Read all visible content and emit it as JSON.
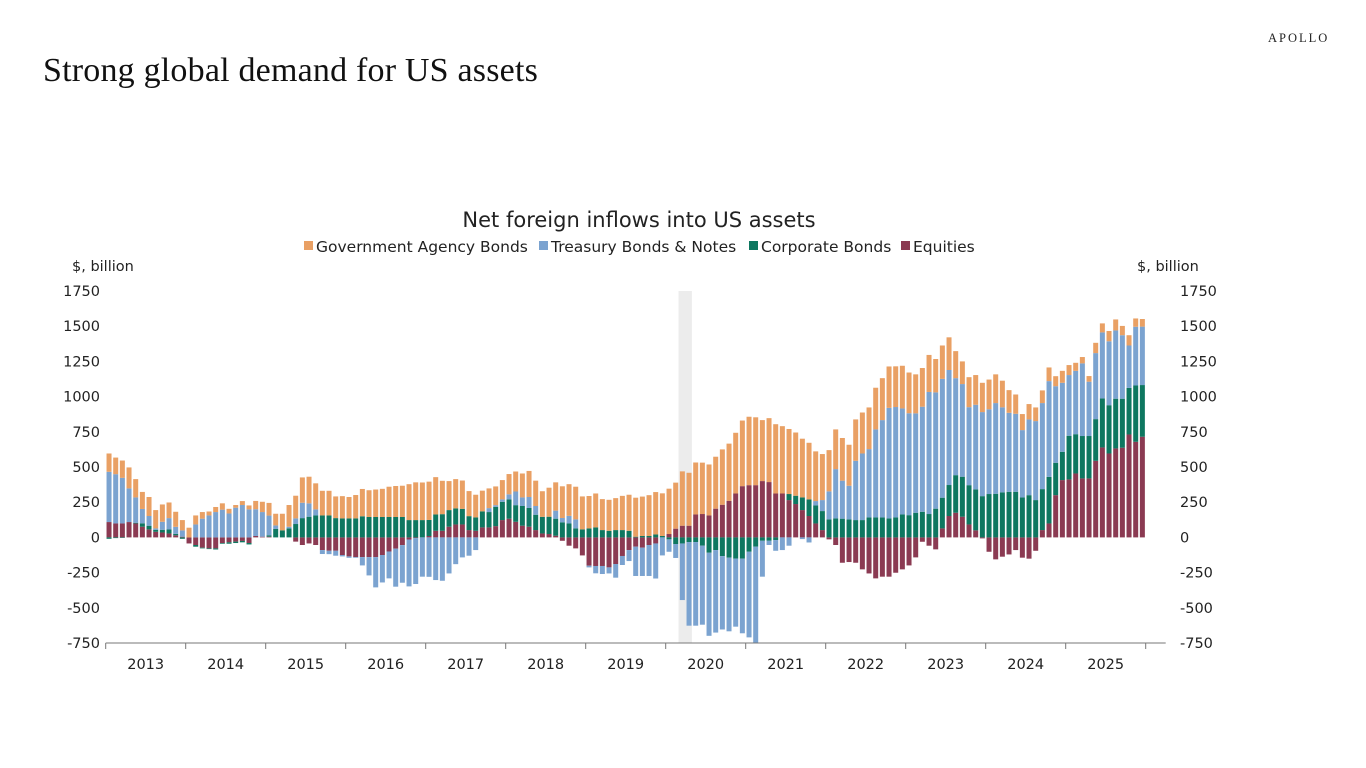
{
  "page": {
    "title": "Strong global demand for US assets",
    "brand": "APOLLO"
  },
  "chart_data": {
    "type": "bar",
    "stacked": true,
    "title": "Net foreign inflows into US assets",
    "ylabel_left": "$, billion",
    "ylabel_right": "$, billion",
    "ylim": [
      -750,
      1750
    ],
    "yticks": [
      1750,
      1500,
      1250,
      1000,
      750,
      500,
      250,
      0,
      -250,
      -500,
      -750
    ],
    "x_tick_labels": [
      "2013",
      "2014",
      "2015",
      "2016",
      "2017",
      "2018",
      "2019",
      "2020",
      "2021",
      "2022",
      "2023",
      "2024",
      "2025"
    ],
    "frequency": "monthly",
    "shaded_region": [
      "2020-03",
      "2020-04"
    ],
    "legend_position": "top",
    "grid": false,
    "series": [
      {
        "name": "Equities",
        "color": "#8B3A52",
        "values": [
          109,
          99,
          99,
          109,
          99,
          76,
          57,
          40,
          35,
          28,
          15,
          5,
          -43,
          -54,
          -73,
          -78,
          -78,
          -40,
          -35,
          -30,
          -25,
          -40,
          10,
          5,
          5,
          0,
          0,
          0,
          -30,
          -54,
          -43,
          -54,
          -90,
          -95,
          -95,
          -125,
          -135,
          -140,
          -140,
          -140,
          -140,
          -125,
          -100,
          -80,
          -55,
          -15,
          -5,
          0,
          10,
          47,
          47,
          76,
          92,
          92,
          52,
          47,
          71,
          71,
          80,
          123,
          133,
          111,
          83,
          76,
          52,
          28,
          24,
          12,
          -24,
          -59,
          -78,
          -128,
          -201,
          -203,
          -203,
          -213,
          -189,
          -132,
          -90,
          -66,
          -73,
          -54,
          -43,
          0,
          24,
          62,
          83,
          83,
          163,
          166,
          156,
          204,
          232,
          260,
          312,
          364,
          371,
          371,
          400,
          393,
          312,
          312,
          265,
          237,
          194,
          152,
          99,
          52,
          -14,
          -54,
          -180,
          -175,
          -180,
          -227,
          -256,
          -291,
          -279,
          -279,
          -251,
          -227,
          -199,
          -142,
          -31,
          -59,
          -85,
          64,
          152,
          175,
          147,
          92,
          50,
          -7,
          -102,
          -156,
          -137,
          -121,
          -90,
          -144,
          -151,
          -95,
          52,
          99,
          300,
          407,
          412,
          454,
          419,
          419,
          544,
          639,
          596,
          632,
          637,
          731,
          679,
          715
        ]
      },
      {
        "name": "Corporate Bonds",
        "color": "#0E7760",
        "values": [
          -10,
          -5,
          -3,
          0,
          5,
          24,
          26,
          14,
          19,
          28,
          10,
          -10,
          0,
          -12,
          -5,
          -5,
          -8,
          -5,
          -10,
          -10,
          -10,
          -10,
          0,
          0,
          10,
          60,
          50,
          64,
          95,
          137,
          147,
          156,
          156,
          156,
          137,
          135,
          135,
          135,
          150,
          145,
          145,
          145,
          145,
          145,
          145,
          123,
          123,
          123,
          114,
          116,
          118,
          118,
          114,
          111,
          99,
          95,
          114,
          109,
          137,
          130,
          137,
          118,
          140,
          133,
          109,
          118,
          123,
          121,
          107,
          99,
          64,
          57,
          64,
          71,
          52,
          47,
          52,
          52,
          47,
          5,
          10,
          10,
          21,
          10,
          -14,
          -47,
          -43,
          -33,
          -33,
          -59,
          -109,
          -90,
          -133,
          -144,
          -151,
          -151,
          -102,
          -66,
          -24,
          -24,
          -19,
          0,
          43,
          59,
          90,
          118,
          128,
          135,
          128,
          135,
          133,
          128,
          123,
          123,
          142,
          142,
          142,
          135,
          142,
          163,
          158,
          175,
          182,
          166,
          204,
          218,
          220,
          267,
          284,
          279,
          291,
          293,
          308,
          310,
          320,
          324,
          324,
          284,
          300,
          265,
          291,
          331,
          230,
          201,
          310,
          279,
          301,
          301,
          296,
          348,
          343,
          353,
          348,
          331,
          400,
          367
        ]
      },
      {
        "name": "Treasury Bonds & Notes",
        "color": "#7BA3D0",
        "values": [
          357,
          350,
          324,
          239,
          180,
          102,
          69,
          10,
          57,
          81,
          50,
          45,
          0,
          92,
          133,
          156,
          180,
          197,
          170,
          211,
          230,
          199,
          190,
          175,
          140,
          25,
          0,
          12,
          40,
          109,
          95,
          43,
          -28,
          -24,
          -35,
          -10,
          -10,
          -5,
          -59,
          -130,
          -215,
          -195,
          -191,
          -270,
          -267,
          -333,
          -326,
          -279,
          -280,
          -303,
          -308,
          -256,
          -190,
          -142,
          -130,
          -90,
          0,
          28,
          12,
          17,
          36,
          97,
          61,
          78,
          62,
          0,
          0,
          57,
          31,
          54,
          64,
          0,
          -12,
          -52,
          -57,
          -43,
          -97,
          -64,
          -78,
          -208,
          -201,
          -220,
          -249,
          -128,
          -88,
          -99,
          -402,
          -594,
          -594,
          -561,
          -590,
          -586,
          -521,
          -523,
          -483,
          -530,
          -608,
          -682,
          -255,
          -30,
          -76,
          -90,
          -59,
          0,
          -12,
          -36,
          31,
          78,
          199,
          350,
          270,
          239,
          421,
          473,
          485,
          625,
          691,
          785,
          784,
          753,
          724,
          706,
          746,
          867,
          826,
          844,
          817,
          689,
          658,
          554,
          601,
          597,
          602,
          644,
          604,
          561,
          554,
          478,
          538,
          561,
          611,
          680,
          544,
          490,
          431,
          450,
          516,
          386,
          469,
          469,
          454,
          485,
          451,
          301,
          417,
          415
        ]
      },
      {
        "name": "Government Agency Bonds",
        "color": "#E9A064",
        "values": [
          130,
          118,
          123,
          149,
          130,
          121,
          135,
          130,
          123,
          111,
          107,
          73,
          69,
          64,
          47,
          28,
          36,
          45,
          33,
          19,
          28,
          28,
          59,
          73,
          90,
          83,
          118,
          154,
          161,
          180,
          189,
          185,
          175,
          175,
          154,
          158,
          152,
          166,
          194,
          190,
          195,
          200,
          215,
          220,
          222,
          255,
          268,
          267,
          272,
          265,
          237,
          206,
          208,
          201,
          178,
          161,
          147,
          140,
          133,
          137,
          144,
          142,
          170,
          185,
          180,
          182,
          206,
          201,
          225,
          225,
          232,
          234,
          230,
          241,
          220,
          220,
          227,
          243,
          256,
          277,
          280,
          290,
          301,
          303,
          322,
          327,
          386,
          376,
          369,
          365,
          362,
          369,
          393,
          406,
          431,
          466,
          486,
          482,
          433,
          454,
          492,
          478,
          462,
          449,
          417,
          402,
          353,
          327,
          293,
          282,
          303,
          291,
          294,
          291,
          296,
          296,
          298,
          294,
          289,
          303,
          289,
          277,
          275,
          263,
          237,
          237,
          232,
          192,
          161,
          213,
          211,
          208,
          211,
          204,
          189,
          161,
          137,
          114,
          109,
          97,
          90,
          97,
          71,
          85,
          71,
          57,
          45,
          40,
          73,
          64,
          73,
          78,
          66,
          73,
          59,
          54
        ]
      }
    ]
  }
}
